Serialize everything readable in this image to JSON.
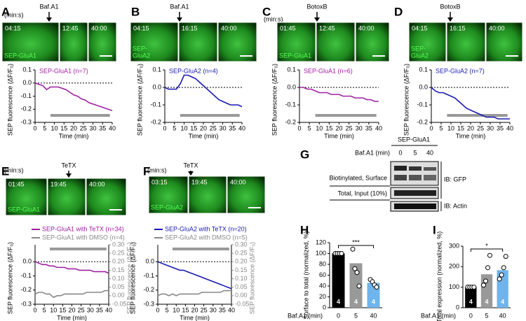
{
  "panels": [
    "A",
    "B",
    "C",
    "D",
    "E",
    "F",
    "G",
    "H",
    "I"
  ],
  "images": [
    {
      "drug": "Baf.A1",
      "unit": "(min:s)",
      "stamps": [
        "04:15",
        "12:45",
        "40:00"
      ],
      "label": [
        "SEP-GluA1"
      ]
    },
    {
      "drug": "Baf.A1",
      "stamps": [
        "04:15",
        "16:15",
        "40:00"
      ],
      "label": [
        "SEP-",
        "GluA2"
      ]
    },
    {
      "drug": "BotoxB",
      "unit": "(min:s)",
      "stamps": [
        "01:45",
        "12:45",
        "40:00"
      ],
      "label": [
        "SEP-GluA1"
      ]
    },
    {
      "drug": "BotoxB",
      "stamps": [
        "04:15",
        "16:15",
        "40:00"
      ],
      "label": [
        "SEP-",
        "GluA2"
      ]
    },
    {
      "drug": "TeTX",
      "unit": "(min:s)",
      "stamps": [
        "01:45",
        "19:45",
        "40:00"
      ],
      "label": [
        "SEP-GluA1"
      ]
    },
    {
      "drug": "TeTX",
      "unit": "(min:s)",
      "stamps": [
        "03:15",
        "19:45",
        "40:00"
      ],
      "label": [
        "SEP-GluA2"
      ]
    }
  ],
  "blot": {
    "construct": "SEP-GluA1",
    "treatment": "Baf.A1 (min)",
    "lanes": [
      "0",
      "5",
      "40"
    ],
    "rows": [
      "Biotinylated, Surface",
      "Total, Input (10%)"
    ],
    "probes": [
      "IB: GFP",
      "IB: Actin"
    ]
  },
  "chart_data": [
    {
      "type": "line",
      "x": [
        0,
        2,
        4,
        6,
        8,
        10,
        12,
        14,
        16,
        18,
        20,
        22,
        24,
        26,
        28,
        30,
        32,
        34,
        36,
        38,
        40
      ],
      "series": [
        {
          "name": "SEP-GluA1 (n=7)",
          "color": "#a020a0",
          "values": [
            0,
            -0.01,
            -0.02,
            -0.05,
            -0.03,
            -0.03,
            -0.03,
            -0.04,
            -0.05,
            -0.07,
            -0.09,
            -0.1,
            -0.12,
            -0.13,
            -0.15,
            -0.16,
            -0.17,
            -0.18,
            -0.19,
            -0.2,
            -0.21
          ]
        }
      ],
      "xlim": [
        0,
        40
      ],
      "xticks": [
        0,
        5,
        10,
        15,
        20,
        25,
        30,
        35,
        40
      ],
      "ylim": [
        -0.3,
        0.1
      ],
      "yticks": [
        0.1,
        {
          "value": 0,
          "label": "0.0"
        },
        -0.1,
        -0.2,
        -0.3
      ],
      "hline": 0,
      "xlabel": "Time (min)",
      "ylabel": "SEP fluorescence (ΔF/F₀)"
    },
    {
      "type": "line",
      "x": [
        0,
        2,
        4,
        6,
        8,
        10,
        12,
        14,
        16,
        18,
        20,
        22,
        24,
        26,
        28,
        30,
        32,
        34,
        36,
        38,
        40
      ],
      "series": [
        {
          "name": "SEP-GluA2 (n=4)",
          "color": "#1a1ab4",
          "values": [
            0,
            -0.01,
            -0.01,
            -0.01,
            0.02,
            0.07,
            0.07,
            0.06,
            0.05,
            0.03,
            0.01,
            -0.01,
            -0.03,
            -0.05,
            -0.07,
            -0.08,
            -0.09,
            -0.1,
            -0.1,
            -0.1,
            -0.11
          ]
        }
      ],
      "xlim": [
        0,
        40
      ],
      "xticks": [
        0,
        5,
        10,
        15,
        20,
        25,
        30,
        35,
        40
      ],
      "ylim": [
        -0.2,
        0.1
      ],
      "yticks": [
        0.1,
        {
          "value": 0,
          "label": "0.0"
        },
        -0.1,
        -0.2
      ],
      "hline": 0,
      "xlabel": "Time (min)",
      "ylabel": "SEP fluorescence (ΔF/F₀)"
    },
    {
      "type": "line",
      "x": [
        0,
        2,
        4,
        6,
        8,
        10,
        12,
        14,
        16,
        18,
        20,
        22,
        24,
        26,
        28,
        30,
        32,
        34,
        36,
        38,
        40
      ],
      "series": [
        {
          "name": "SEP-GluA1 (n=6)",
          "color": "#a020a0",
          "values": [
            0,
            0,
            -0.01,
            -0.01,
            -0.02,
            -0.03,
            -0.03,
            -0.03,
            -0.04,
            -0.04,
            -0.04,
            -0.05,
            -0.05,
            -0.05,
            -0.06,
            -0.06,
            -0.06,
            -0.07,
            -0.07,
            -0.08,
            -0.08
          ]
        }
      ],
      "xlim": [
        0,
        40
      ],
      "xticks": [
        0,
        5,
        10,
        15,
        20,
        25,
        30,
        35,
        40
      ],
      "ylim": [
        -0.2,
        0.1
      ],
      "yticks": [
        0.1,
        {
          "value": 0,
          "label": "0.0"
        },
        -0.1,
        -0.2
      ],
      "hline": 0,
      "xlabel": "Time (min)",
      "ylabel": "SEP fluorescence (ΔF/F₀)"
    },
    {
      "type": "line",
      "x": [
        0,
        2,
        4,
        6,
        8,
        10,
        12,
        14,
        16,
        18,
        20,
        22,
        24,
        26,
        28,
        30,
        32,
        34,
        36,
        38,
        40
      ],
      "series": [
        {
          "name": "SEP-GluA2 (n=7)",
          "color": "#1a1ab4",
          "values": [
            0,
            -0.02,
            -0.03,
            -0.03,
            -0.04,
            -0.05,
            -0.06,
            -0.08,
            -0.1,
            -0.12,
            -0.13,
            -0.14,
            -0.15,
            -0.16,
            -0.17,
            -0.17,
            -0.17,
            -0.18,
            -0.18,
            -0.18,
            -0.18
          ]
        }
      ],
      "xlim": [
        0,
        40
      ],
      "xticks": [
        0,
        5,
        10,
        15,
        20,
        25,
        30,
        35,
        40
      ],
      "ylim": [
        -0.2,
        0.1
      ],
      "yticks": [
        0.1,
        {
          "value": 0,
          "label": "0.0"
        },
        -0.1,
        -0.2
      ],
      "hline": 0,
      "xlabel": "Time (min)",
      "ylabel": "SEP fluorescence (ΔF/F₀)"
    },
    {
      "type": "line",
      "x": [
        0,
        2,
        4,
        6,
        8,
        10,
        12,
        14,
        16,
        18,
        20,
        22,
        24,
        26,
        28,
        30,
        32,
        34,
        36,
        38,
        40
      ],
      "series": [
        {
          "name": "SEP-GluA1 with TeTX (n=34)",
          "color": "#a020a0",
          "values": [
            0,
            -0.01,
            -0.02,
            -0.02,
            -0.03,
            -0.03,
            -0.04,
            -0.04,
            -0.04,
            -0.05,
            -0.05,
            -0.05,
            -0.06,
            -0.06,
            -0.06,
            -0.06,
            -0.07,
            -0.07,
            -0.07,
            -0.07,
            -0.08
          ]
        },
        {
          "name": "SEP-GluA1 with DMSO (n=4)",
          "color": "#888888",
          "axis": "y2",
          "values": [
            0.01,
            0.02,
            0.02,
            0.01,
            0.01,
            -0.01,
            0,
            0,
            0.01,
            0.01,
            0.01,
            0.01,
            0.01,
            0.01,
            0.02,
            0.02,
            0.02,
            0.02,
            0.02,
            0.03,
            0.03
          ]
        }
      ],
      "xlim": [
        0,
        40
      ],
      "xticks": [
        0,
        5,
        10,
        15,
        20,
        25,
        30,
        35,
        40
      ],
      "ylim": [
        -0.3,
        0.12
      ],
      "yticks": [
        {
          "value": 0,
          "label": "0.0"
        },
        -0.1,
        -0.2,
        -0.3
      ],
      "hline": 0,
      "y2lim": [
        -0.05,
        0.3
      ],
      "y2ticks": [
        {
          "value": 0.3,
          "label": "0.30"
        },
        0.25,
        {
          "value": 0.2,
          "label": "0.20"
        },
        0.15,
        {
          "value": 0.1,
          "label": "0.10"
        },
        0.05,
        {
          "value": 0,
          "label": "0.00"
        },
        -0.05
      ],
      "xlabel": "Time (min)",
      "ylabel": "SEP fluorescence (ΔF/F₀)",
      "y2label": "SEP fluorescence (ΔF/F₀)"
    },
    {
      "type": "line",
      "x": [
        0,
        2,
        4,
        6,
        8,
        10,
        12,
        14,
        16,
        18,
        20,
        22,
        24,
        26,
        28,
        30,
        32,
        34,
        36,
        38,
        40
      ],
      "series": [
        {
          "name": "SEP-GluA2 with TeTX (n=20)",
          "color": "#1a1ab4",
          "values": [
            0,
            -0.01,
            -0.02,
            -0.03,
            -0.04,
            -0.05,
            -0.06,
            -0.06,
            -0.07,
            -0.08,
            -0.09,
            -0.1,
            -0.11,
            -0.12,
            -0.13,
            -0.14,
            -0.15,
            -0.16,
            -0.17,
            -0.18,
            -0.19
          ]
        },
        {
          "name": "SEP-GluA2 with DMSO (n=5)",
          "color": "#888888",
          "axis": "y2",
          "values": [
            0,
            0.01,
            0.01,
            0,
            0.01,
            0,
            0.01,
            0.01,
            0.01,
            0.01,
            0.01,
            0.01,
            0.02,
            0.02,
            0.02,
            0.02,
            0.02,
            0.02,
            0.03,
            0.03,
            0.03
          ]
        }
      ],
      "xlim": [
        0,
        40
      ],
      "xticks": [
        0,
        5,
        10,
        15,
        20,
        25,
        30,
        35,
        40
      ],
      "ylim": [
        -0.3,
        0.12
      ],
      "yticks": [
        {
          "value": 0,
          "label": "0.0"
        },
        -0.1,
        -0.2,
        -0.3
      ],
      "hline": 0,
      "y2lim": [
        -0.05,
        0.3
      ],
      "y2ticks": [
        {
          "value": 0.3,
          "label": "0.30"
        },
        0.25,
        {
          "value": 0.2,
          "label": "0.20"
        },
        0.15,
        {
          "value": 0.1,
          "label": "0.10"
        },
        0.05,
        {
          "value": 0,
          "label": "0.00"
        },
        -0.05
      ],
      "xlabel": "Time (min)",
      "ylabel": "SEP fluorescence (ΔF/F₀)",
      "y2label": "SEP fluorescence (ΔF/F₀)"
    },
    {
      "type": "bar",
      "categories": [
        "0",
        "5",
        "40"
      ],
      "values": [
        100,
        82,
        46
      ],
      "colors": [
        "#000000",
        "#999999",
        "#6fb4ec"
      ],
      "points": [
        [
          100,
          100,
          100,
          100
        ],
        [
          108,
          72,
          65,
          40
        ],
        [
          52,
          48,
          42,
          38
        ]
      ],
      "n_labels": [
        "4",
        "4",
        "4"
      ],
      "ylim": [
        0,
        120
      ],
      "yticks": [
        0,
        20,
        40,
        60,
        80,
        100,
        120
      ],
      "significance": "***",
      "xlabel": "Baf.A1 (min)",
      "ylabel": "Surface to total (normalized, %)"
    },
    {
      "type": "bar",
      "categories": [
        "0",
        "5",
        "40"
      ],
      "values": [
        100,
        163,
        183
      ],
      "colors": [
        "#000000",
        "#999999",
        "#6fb4ec"
      ],
      "points": [
        [
          100,
          100,
          100,
          100
        ],
        [
          110,
          130,
          195,
          255
        ],
        [
          140,
          160,
          195,
          250
        ]
      ],
      "n_labels": [
        "4",
        "4",
        "4"
      ],
      "ylim": [
        0,
        300
      ],
      "yticks": [
        0,
        100,
        200,
        300
      ],
      "significance": "*",
      "xlabel": "Baf.A1 (min)",
      "ylabel": "Total expression (normalized, %)"
    }
  ]
}
